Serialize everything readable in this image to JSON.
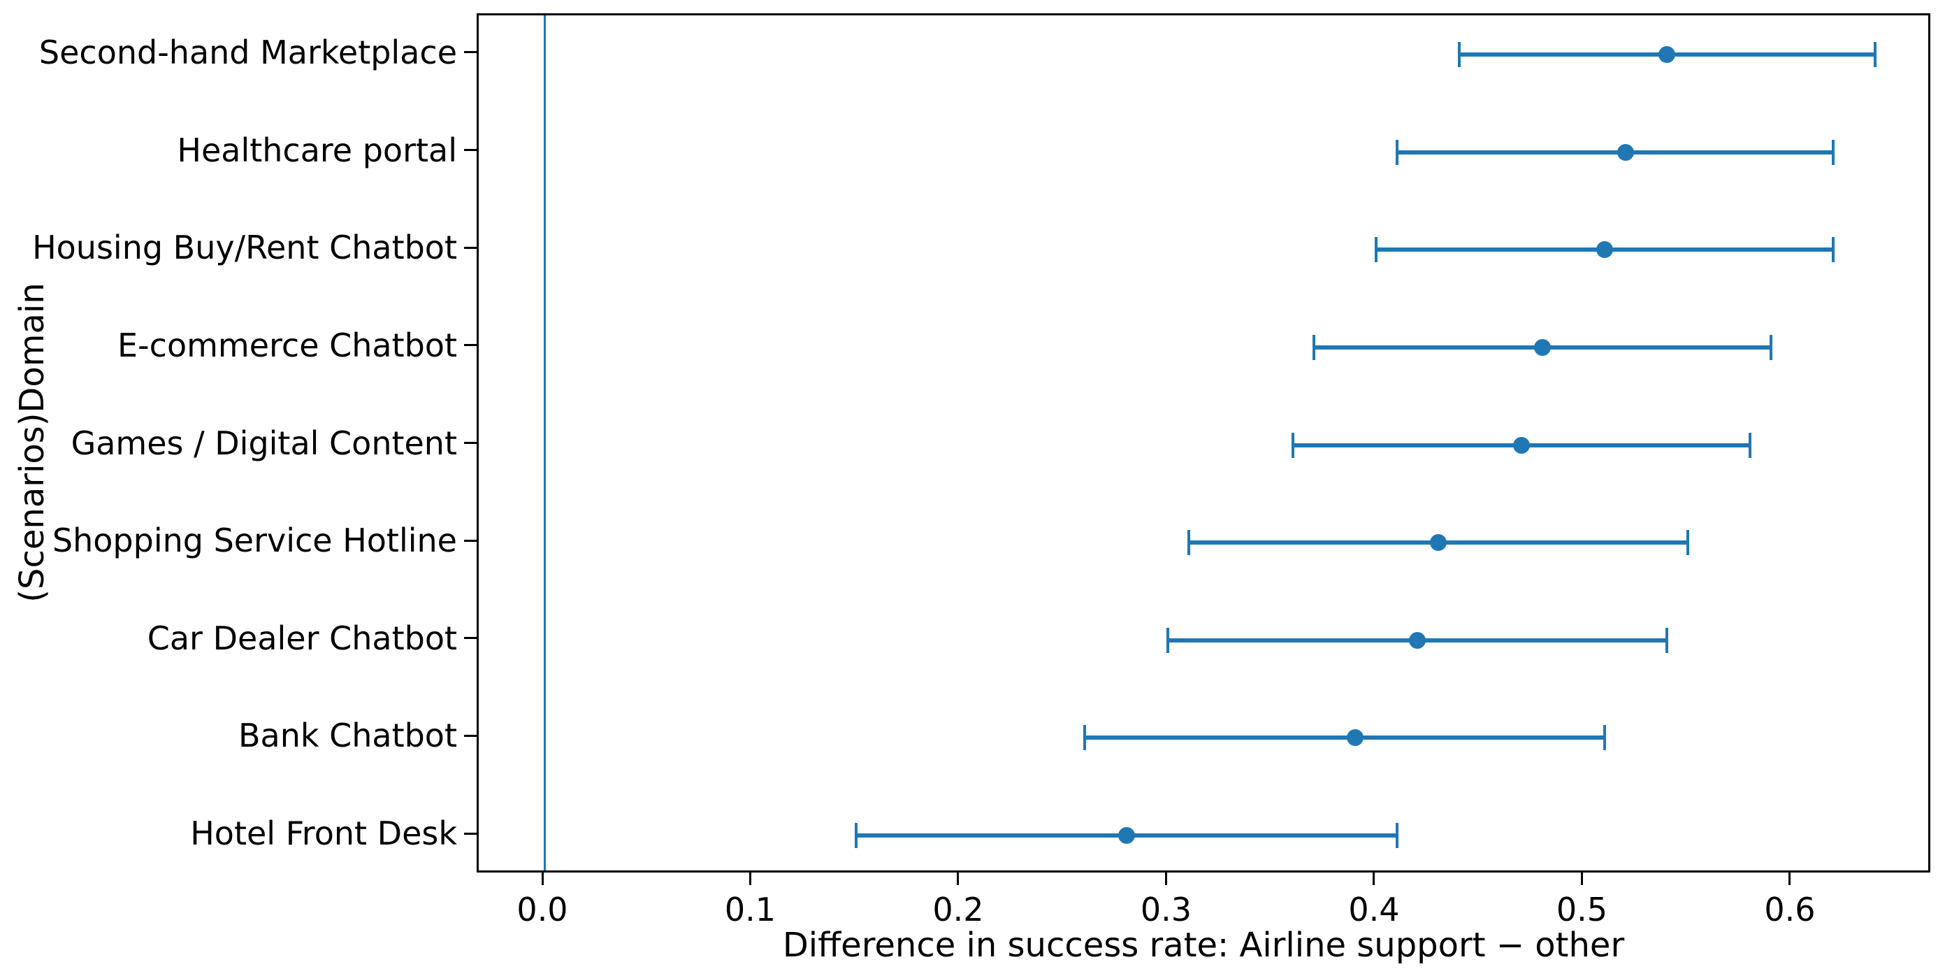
{
  "figure": {
    "background": "#ffffff",
    "accent_color": "#1f77b4",
    "axis_color": "#000000"
  },
  "chart_data": {
    "type": "scatter",
    "subtype": "horizontal-point-errorbar",
    "title": "",
    "xlabel": "Difference in success rate: Airline support − other",
    "ylabel": "(Scenarios)Domain",
    "xlim": [
      -0.0316,
      0.6676
    ],
    "xticks": [
      0.0,
      0.1,
      0.2,
      0.3,
      0.4,
      0.5,
      0.6
    ],
    "xtick_labels": [
      "0.0",
      "0.1",
      "0.2",
      "0.3",
      "0.4",
      "0.5",
      "0.6"
    ],
    "grid": false,
    "legend": "none",
    "reference_line_x": 0.0,
    "categories": [
      "Second-hand Marketplace",
      "Healthcare portal",
      "Housing Buy/Rent Chatbot",
      "E-commerce Chatbot",
      "Games / Digital Content",
      "Shopping Service Hotline",
      "Car Dealer Chatbot",
      "Bank Chatbot",
      "Hotel Front Desk"
    ],
    "series": [
      {
        "name": "Difference in success rate (Airline support minus other)",
        "values": [
          0.54,
          0.52,
          0.51,
          0.48,
          0.47,
          0.43,
          0.42,
          0.39,
          0.28
        ],
        "ci_low": [
          0.44,
          0.41,
          0.4,
          0.37,
          0.36,
          0.31,
          0.3,
          0.26,
          0.15
        ],
        "ci_high": [
          0.64,
          0.62,
          0.62,
          0.59,
          0.58,
          0.55,
          0.54,
          0.51,
          0.41
        ],
        "marker": "circle",
        "color": "#1f77b4"
      }
    ]
  }
}
